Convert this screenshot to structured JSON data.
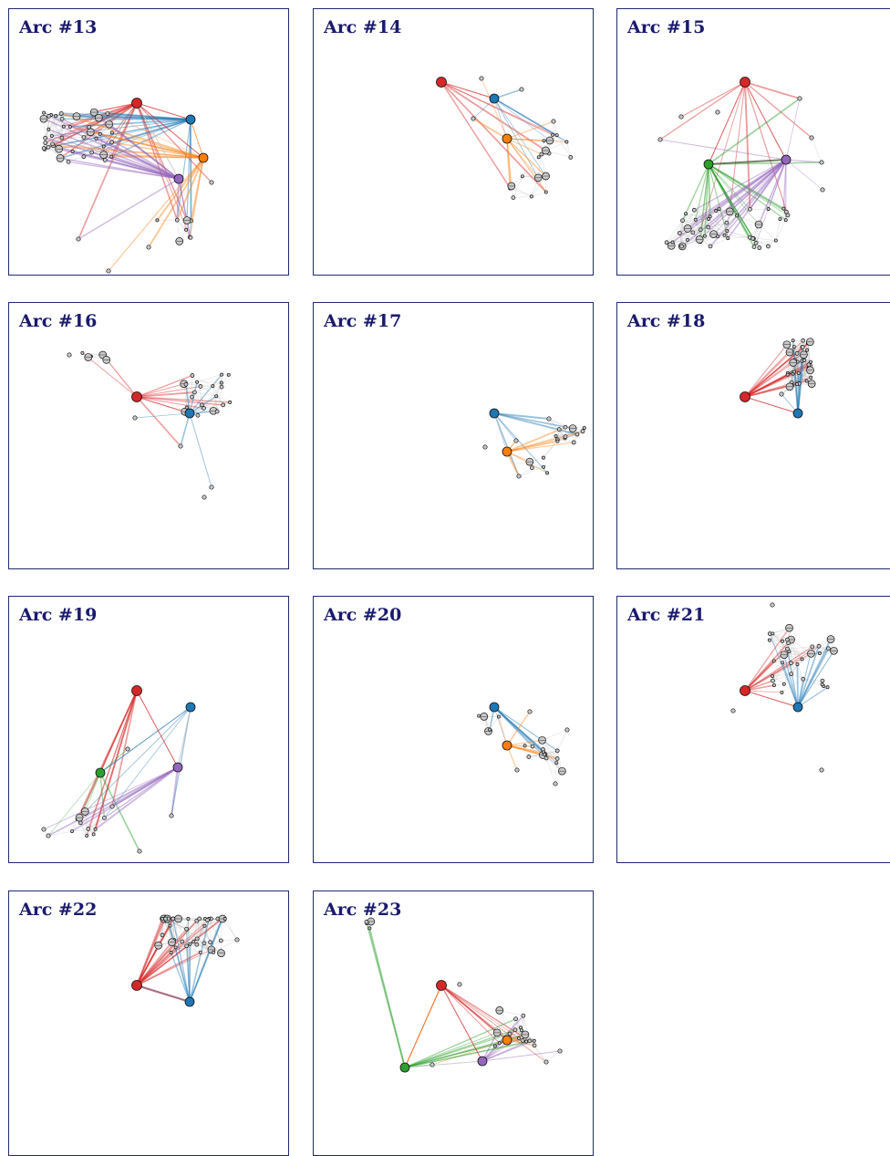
{
  "colors": {
    "frame": "#1f2a6e",
    "title": "#1a1a6e",
    "red": "#d62728",
    "blue": "#1f77b4",
    "orange": "#ff7f0e",
    "purple": "#9467bd",
    "green": "#2ca02c",
    "gray_node": "#c8c8c8",
    "gray_edge": "#bdbdbd"
  },
  "panels": [
    {
      "title": "Arc #13",
      "hubs": [
        "red",
        "blue",
        "orange",
        "purple"
      ]
    },
    {
      "title": "Arc #14",
      "hubs": [
        "red",
        "blue",
        "orange"
      ]
    },
    {
      "title": "Arc #15",
      "hubs": [
        "red",
        "green",
        "purple"
      ]
    },
    {
      "title": "Arc #16",
      "hubs": [
        "red",
        "blue"
      ]
    },
    {
      "title": "Arc #17",
      "hubs": [
        "blue",
        "orange"
      ]
    },
    {
      "title": "Arc #18",
      "hubs": [
        "red",
        "blue"
      ]
    },
    {
      "title": "Arc #19",
      "hubs": [
        "red",
        "green",
        "purple"
      ]
    },
    {
      "title": "Arc #20",
      "hubs": [
        "blue",
        "orange"
      ]
    },
    {
      "title": "Arc #21",
      "hubs": [
        "red",
        "blue"
      ]
    },
    {
      "title": "Arc #22",
      "hubs": [
        "red",
        "blue"
      ]
    },
    {
      "title": "Arc #23",
      "hubs": [
        "red",
        "orange",
        "purple",
        "green"
      ]
    }
  ]
}
